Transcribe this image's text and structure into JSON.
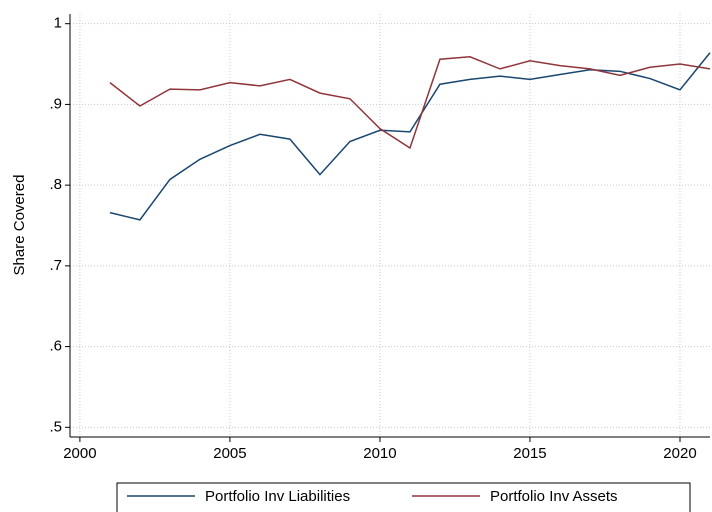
{
  "chart_data": {
    "type": "line",
    "y_label": "Share Covered",
    "x": [
      2001,
      2002,
      2003,
      2004,
      2005,
      2006,
      2007,
      2008,
      2009,
      2010,
      2011,
      2012,
      2013,
      2014,
      2015,
      2016,
      2017,
      2018,
      2019,
      2020,
      2021
    ],
    "series": [
      {
        "name": "Portfolio Inv Liabilities",
        "color": "#1a476f",
        "values": [
          0.766,
          0.757,
          0.807,
          0.832,
          0.849,
          0.863,
          0.857,
          0.813,
          0.854,
          0.868,
          0.866,
          0.925,
          0.931,
          0.935,
          0.931,
          0.937,
          0.943,
          0.941,
          0.932,
          0.918,
          0.964
        ]
      },
      {
        "name": "Portfolio Inv Assets",
        "color": "#90353b",
        "values": [
          0.927,
          0.898,
          0.919,
          0.918,
          0.927,
          0.923,
          0.931,
          0.914,
          0.907,
          0.87,
          0.846,
          0.956,
          0.959,
          0.944,
          0.954,
          0.948,
          0.944,
          0.936,
          0.946,
          0.95,
          0.944
        ]
      }
    ],
    "xlim": [
      1999.67,
      2021
    ],
    "xticks": [
      2000,
      2005,
      2010,
      2015,
      2020
    ],
    "ylim": [
      0.488,
      1.012
    ],
    "yticks": [
      {
        "value": 0.5,
        "label": ".5"
      },
      {
        "value": 0.6,
        "label": ".6"
      },
      {
        "value": 0.7,
        "label": ".7"
      },
      {
        "value": 0.8,
        "label": ".8"
      },
      {
        "value": 0.9,
        "label": ".9"
      },
      1
    ],
    "grid": true,
    "legend": "bottom"
  }
}
